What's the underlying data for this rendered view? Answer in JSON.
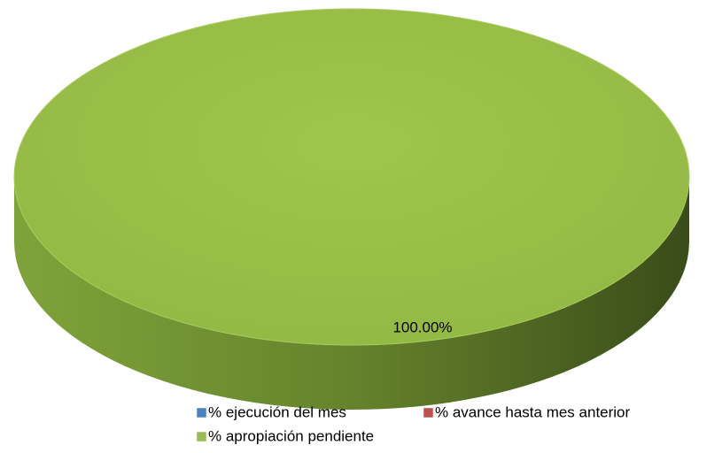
{
  "chart_data": {
    "type": "pie",
    "categories": [
      "% ejecución del mes",
      "% avance hasta mes anterior",
      "% apropiación pendiente"
    ],
    "values": [
      0,
      0,
      100
    ],
    "value_labels": [
      null,
      null,
      "100.00%"
    ],
    "colors": [
      "#4f81bd",
      "#c0504d",
      "#9bbb59"
    ],
    "legend": "bottom"
  }
}
